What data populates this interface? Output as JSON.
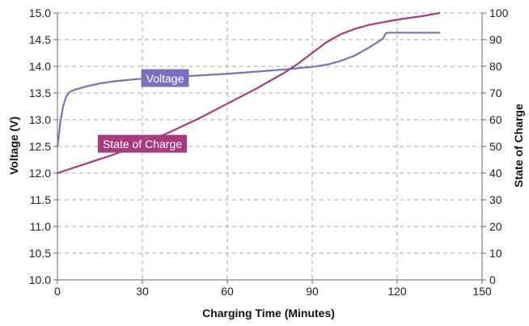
{
  "chart_data": {
    "type": "line",
    "title": "",
    "xlabel": "Charging Time (Minutes)",
    "ylabel_left": "Voltage (V)",
    "ylabel_right": "State of Charge",
    "xlim": [
      0,
      150
    ],
    "ylim_left": [
      10.0,
      15.0
    ],
    "ylim_right": [
      0,
      100
    ],
    "x_ticks": [
      "0",
      "30",
      "60",
      "90",
      "120",
      "150"
    ],
    "y_left_ticks": [
      "10.0",
      "10.5",
      "11.0",
      "11.5",
      "12.0",
      "12.5",
      "13.0",
      "13.5",
      "14.0",
      "14.5",
      "15.0"
    ],
    "y_right_ticks": [
      "0",
      "10",
      "20",
      "30",
      "40",
      "50",
      "60",
      "70",
      "80",
      "90",
      "100"
    ],
    "grid": true,
    "series": [
      {
        "name": "Voltage",
        "axis": "left",
        "color": "#7b6fc0",
        "x": [
          0,
          0.5,
          1,
          2,
          3,
          4,
          5,
          6,
          8,
          10,
          15,
          20,
          30,
          40,
          50,
          60,
          70,
          80,
          90,
          95,
          100,
          105,
          110,
          113,
          115,
          116,
          117,
          120,
          125,
          130,
          135
        ],
        "y": [
          12.5,
          12.7,
          12.95,
          13.25,
          13.42,
          13.5,
          13.54,
          13.56,
          13.59,
          13.62,
          13.68,
          13.72,
          13.77,
          13.8,
          13.83,
          13.86,
          13.9,
          13.94,
          13.99,
          14.03,
          14.1,
          14.2,
          14.35,
          14.45,
          14.52,
          14.62,
          14.63,
          14.63,
          14.63,
          14.63,
          14.63
        ]
      },
      {
        "name": "State of Charge",
        "axis": "right",
        "color": "#a83a7f",
        "x": [
          0,
          10,
          20,
          30,
          40,
          50,
          60,
          70,
          80,
          85,
          90,
          95,
          100,
          105,
          110,
          120,
          130,
          135
        ],
        "y": [
          40,
          43.5,
          47,
          51,
          55.5,
          60.5,
          66,
          71.5,
          77.5,
          81,
          85,
          89,
          92,
          94,
          95.5,
          97.5,
          99,
          100
        ]
      }
    ],
    "callouts": [
      {
        "series": "Voltage",
        "text": "Voltage",
        "at_x": 38,
        "at_y": 13.78
      },
      {
        "series": "State of Charge",
        "text": "State of Charge",
        "at_x": 30,
        "at_y": 51
      }
    ]
  }
}
